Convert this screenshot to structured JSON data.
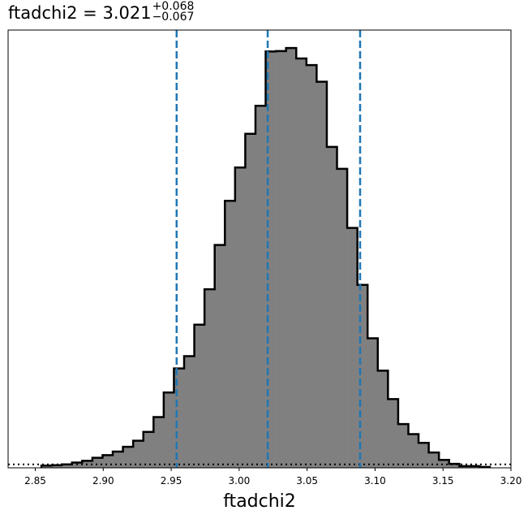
{
  "title": {
    "main": "ftadchi2 = 3.021",
    "plus": "+0.068",
    "minus": "−0.067"
  },
  "chart_data": {
    "type": "histogram",
    "xlabel": "ftadchi2",
    "xlim": [
      2.83,
      3.2
    ],
    "ylim": [
      0,
      1.0
    ],
    "xticks": [
      "2.85",
      "2.90",
      "2.95",
      "3.00",
      "3.05",
      "3.10",
      "3.15",
      "3.20"
    ],
    "bin_edges_start": 2.8545,
    "bin_width": 0.0075,
    "counts": [
      0.005,
      0.006,
      0.008,
      0.012,
      0.016,
      0.023,
      0.029,
      0.037,
      0.048,
      0.062,
      0.082,
      0.116,
      0.172,
      0.227,
      0.255,
      0.327,
      0.408,
      0.509,
      0.61,
      0.686,
      0.763,
      0.827,
      0.951,
      0.952,
      0.959,
      0.935,
      0.92,
      0.882,
      0.733,
      0.683,
      0.548,
      0.418,
      0.296,
      0.222,
      0.157,
      0.1,
      0.077,
      0.057,
      0.035,
      0.018,
      0.009,
      0.004,
      0.004,
      0.002
    ],
    "quantile_lines": [
      2.954,
      3.021,
      3.089
    ],
    "prior_line_level": 0.008,
    "bar_fill": "#808080",
    "edge_color": "#000000",
    "quantile_color": "#1f77b4"
  }
}
